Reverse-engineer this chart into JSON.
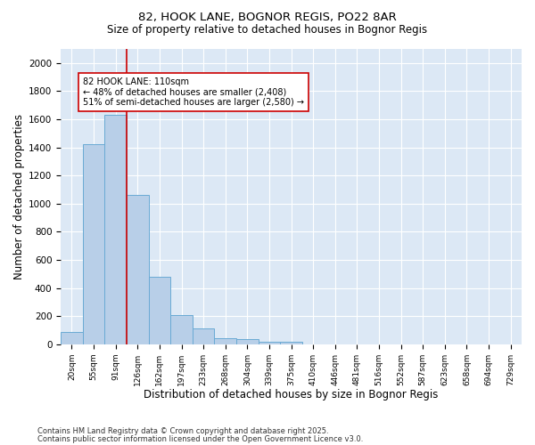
{
  "title1": "82, HOOK LANE, BOGNOR REGIS, PO22 8AR",
  "title2": "Size of property relative to detached houses in Bognor Regis",
  "xlabel": "Distribution of detached houses by size in Bognor Regis",
  "ylabel": "Number of detached properties",
  "categories": [
    "20sqm",
    "55sqm",
    "91sqm",
    "126sqm",
    "162sqm",
    "197sqm",
    "233sqm",
    "268sqm",
    "304sqm",
    "339sqm",
    "375sqm",
    "410sqm",
    "446sqm",
    "481sqm",
    "516sqm",
    "552sqm",
    "587sqm",
    "623sqm",
    "658sqm",
    "694sqm",
    "729sqm"
  ],
  "values": [
    90,
    1420,
    1630,
    1060,
    480,
    210,
    110,
    45,
    35,
    20,
    15,
    0,
    0,
    0,
    0,
    0,
    0,
    0,
    0,
    0,
    0
  ],
  "bar_color": "#b8cfe8",
  "bar_edge_color": "#6aaad4",
  "vline_x": 2.5,
  "vline_color": "#cc0000",
  "annotation_text": "82 HOOK LANE: 110sqm\n← 48% of detached houses are smaller (2,408)\n51% of semi-detached houses are larger (2,580) →",
  "annotation_box_color": "#ffffff",
  "annotation_box_edge": "#cc0000",
  "ylim": [
    0,
    2100
  ],
  "yticks": [
    0,
    200,
    400,
    600,
    800,
    1000,
    1200,
    1400,
    1600,
    1800,
    2000
  ],
  "background_color": "#dce8f5",
  "footer1": "Contains HM Land Registry data © Crown copyright and database right 2025.",
  "footer2": "Contains public sector information licensed under the Open Government Licence v3.0."
}
